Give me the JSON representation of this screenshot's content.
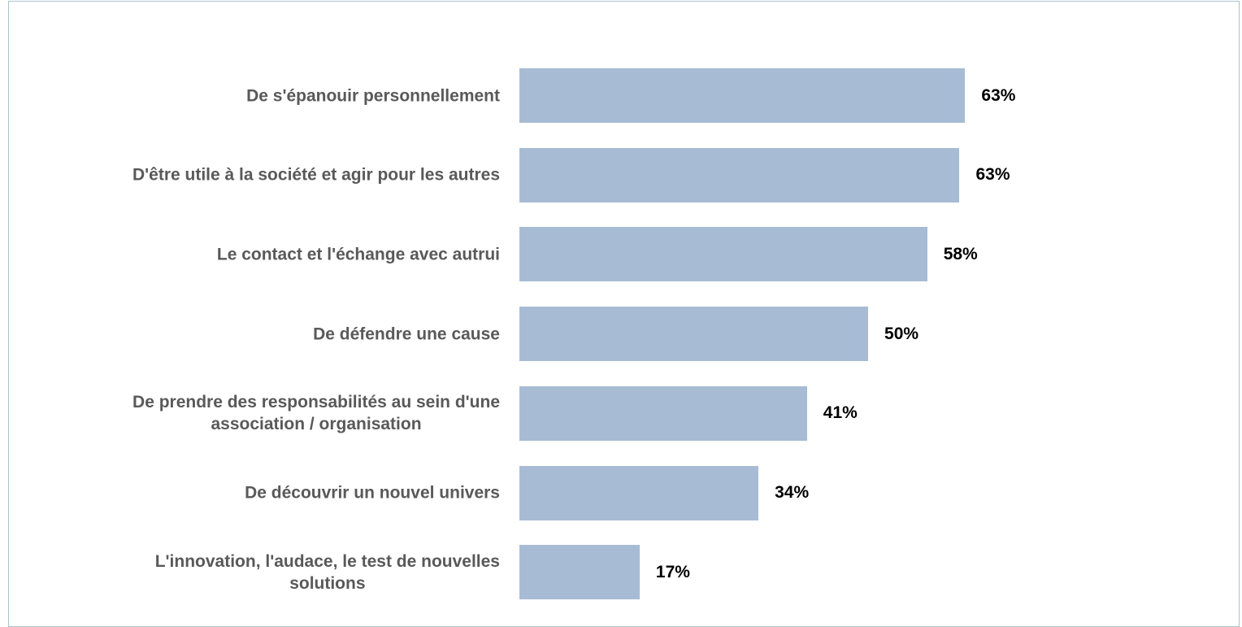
{
  "chart_data": {
    "type": "bar",
    "orientation": "horizontal",
    "categories": [
      "De s'épanouir personnellement",
      "D'être utile à la société et agir pour les autres",
      "Le contact et l'échange avec autrui",
      "De défendre une cause",
      "De prendre des responsabilités au sein d'une\nassociation / organisation",
      "De découvrir un nouvel univers",
      "L'innovation, l'audace, le test de nouvelles\nsolutions"
    ],
    "values": [
      63.4,
      62.6,
      58,
      49.6,
      40.9,
      34,
      17.1
    ],
    "value_labels": [
      "63%",
      "63%",
      "58%",
      "50%",
      "41%",
      "34%",
      "17%"
    ],
    "color": "#a7bcd4",
    "xlim": [
      0,
      100
    ]
  }
}
